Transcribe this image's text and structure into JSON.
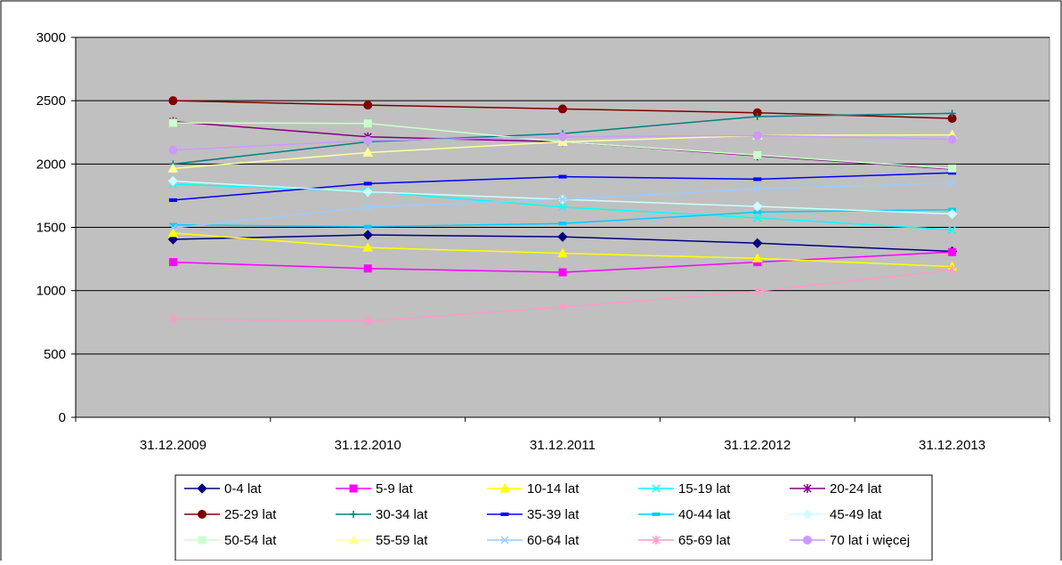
{
  "chart_data": {
    "type": "line",
    "title": "",
    "xlabel": "",
    "ylabel": "",
    "ylim": [
      0,
      3000
    ],
    "yticks": [
      0,
      500,
      1000,
      1500,
      2000,
      2500,
      3000
    ],
    "grid": true,
    "legend_position": "bottom",
    "plot_background": "#c0c0c0",
    "categories": [
      "31.12.2009",
      "31.12.2010",
      "31.12.2011",
      "31.12.2012",
      "31.12.2013"
    ],
    "series": [
      {
        "name": "0-4 lat",
        "color": "#000080",
        "marker": "diamond",
        "values": [
          1405,
          1440,
          1425,
          1375,
          1310
        ]
      },
      {
        "name": "5-9 lat",
        "color": "#ff00ff",
        "marker": "square",
        "values": [
          1225,
          1175,
          1145,
          1225,
          1305
        ]
      },
      {
        "name": "10-14 lat",
        "color": "#ffff00",
        "marker": "triangle",
        "values": [
          1455,
          1340,
          1295,
          1255,
          1190
        ]
      },
      {
        "name": "15-19 lat",
        "color": "#00ffff",
        "marker": "x",
        "values": [
          1840,
          1785,
          1660,
          1575,
          1480
        ]
      },
      {
        "name": "20-24 lat",
        "color": "#800080",
        "marker": "star",
        "values": [
          2335,
          2215,
          2175,
          2065,
          1960
        ]
      },
      {
        "name": "25-29 lat",
        "color": "#800000",
        "marker": "circle",
        "values": [
          2500,
          2465,
          2435,
          2405,
          2360
        ]
      },
      {
        "name": "30-34 lat",
        "color": "#008080",
        "marker": "plus",
        "values": [
          2000,
          2175,
          2240,
          2375,
          2400
        ]
      },
      {
        "name": "35-39 lat",
        "color": "#0000ff",
        "marker": "dash",
        "values": [
          1715,
          1845,
          1900,
          1880,
          1930
        ]
      },
      {
        "name": "40-44 lat",
        "color": "#00ccff",
        "marker": "dash",
        "values": [
          1520,
          1505,
          1530,
          1620,
          1640
        ]
      },
      {
        "name": "45-49 lat",
        "color": "#ccffff",
        "marker": "diamond",
        "values": [
          1865,
          1780,
          1720,
          1665,
          1605
        ]
      },
      {
        "name": "50-54 lat",
        "color": "#ccffcc",
        "marker": "square",
        "values": [
          2325,
          2320,
          2175,
          2070,
          1965
        ]
      },
      {
        "name": "55-59 lat",
        "color": "#ffff99",
        "marker": "triangle",
        "values": [
          1965,
          2090,
          2175,
          2225,
          2230
        ]
      },
      {
        "name": "60-64 lat",
        "color": "#99ccff",
        "marker": "x",
        "values": [
          1495,
          1660,
          1720,
          1805,
          1850
        ]
      },
      {
        "name": "65-69 lat",
        "color": "#ff99cc",
        "marker": "star",
        "values": [
          775,
          760,
          870,
          995,
          1165
        ]
      },
      {
        "name": "70 lat i więcej",
        "color": "#cc99ff",
        "marker": "circle",
        "values": [
          2110,
          2185,
          2215,
          2225,
          2195
        ]
      }
    ]
  }
}
